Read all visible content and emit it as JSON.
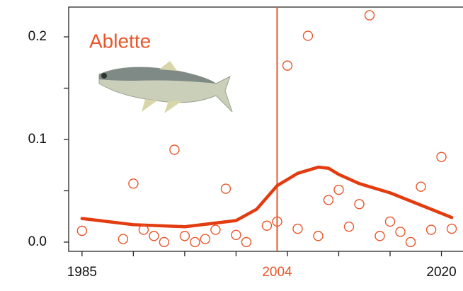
{
  "chart_data": {
    "type": "scatter",
    "title": "Ablette",
    "title_color": "#e8562a",
    "xlim": [
      1983.7,
      2022.1
    ],
    "ylim": [
      -0.009,
      0.229
    ],
    "xticks": [
      1985,
      2020
    ],
    "xtick_marks": [
      1985,
      1990,
      1995,
      2000,
      2005,
      2010,
      2015,
      2020
    ],
    "yticks": [
      {
        "value": 0,
        "label": "0.0"
      },
      0.1,
      0.2
    ],
    "ytick_marks": [
      0,
      0.05,
      0.1,
      0.15,
      0.2
    ],
    "vline": {
      "x": 2004,
      "color": "#e8562a"
    },
    "points": {
      "color": "#e8562a",
      "x": [
        1985,
        1989,
        1990,
        1991,
        1992,
        1993,
        1994,
        1995,
        1996,
        1997,
        1998,
        1999,
        2000,
        2001,
        2003,
        2004,
        2005,
        2006,
        2007,
        2008,
        2009,
        2010,
        2011,
        2012,
        2013,
        2014,
        2015,
        2016,
        2017,
        2018,
        2019,
        2020,
        2021
      ],
      "values": [
        0.011,
        0.003,
        0.057,
        0.012,
        0.006,
        0.0,
        0.09,
        0.006,
        0.0,
        0.003,
        0.012,
        0.052,
        0.007,
        0.0,
        0.016,
        0.02,
        0.172,
        0.013,
        0.201,
        0.006,
        0.041,
        0.051,
        0.015,
        0.037,
        0.221,
        0.006,
        0.02,
        0.01,
        0.0,
        0.054,
        0.012,
        0.083,
        0.013
      ]
    },
    "smooth": {
      "color": "#e23c10",
      "x": [
        1985,
        1990,
        1995,
        2000,
        2002,
        2004,
        2006,
        2008,
        2009,
        2010,
        2012,
        2015,
        2018,
        2021
      ],
      "values": [
        0.023,
        0.017,
        0.015,
        0.021,
        0.032,
        0.055,
        0.067,
        0.073,
        0.072,
        0.066,
        0.057,
        0.048,
        0.036,
        0.024
      ]
    }
  }
}
